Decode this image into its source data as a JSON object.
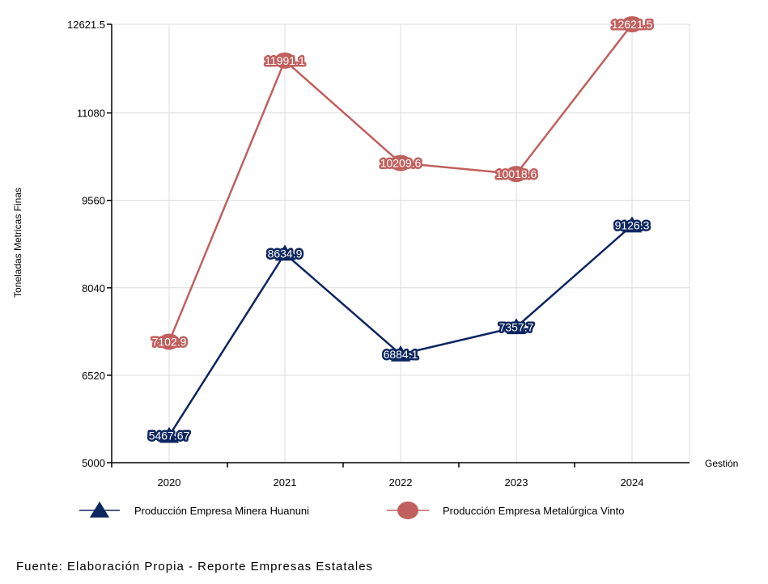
{
  "chart_data": {
    "type": "line",
    "categories": [
      "2020",
      "2021",
      "2022",
      "2023",
      "2024"
    ],
    "series": [
      {
        "name": "Producción Empresa Minera Huanuni",
        "color": "#0d2660",
        "marker": "triangle",
        "values": [
          5467.67,
          8634.9,
          6884.1,
          7357.7,
          9126.3
        ],
        "labels": [
          "5467.67",
          "8634.9",
          "6884.1",
          "7357.7",
          "9126.3"
        ]
      },
      {
        "name": "Producción Empresa Metalúrgica Vinto",
        "color": "#c0605e",
        "marker": "circle",
        "values": [
          7102.9,
          11991.1,
          10209.6,
          10018.6,
          12621.5
        ],
        "labels": [
          "7102.9",
          "11991.1",
          "10209.6",
          "10018.6",
          "12621.5"
        ]
      }
    ],
    "xlabel": "Gestión",
    "ylabel": "Toneladas Metricas Finas",
    "ylim": [
      5000,
      12621.5
    ],
    "yticks": [
      5000,
      6520,
      8040,
      9560,
      11080,
      12621.5
    ],
    "ytick_labels": [
      "5000",
      "6520",
      "8040",
      "9560",
      "11080",
      "12621.5"
    ],
    "grid": true,
    "legend_position": "bottom"
  },
  "source_text": "Fuente: Elaboración Propia - Reporte Empresas Estatales"
}
